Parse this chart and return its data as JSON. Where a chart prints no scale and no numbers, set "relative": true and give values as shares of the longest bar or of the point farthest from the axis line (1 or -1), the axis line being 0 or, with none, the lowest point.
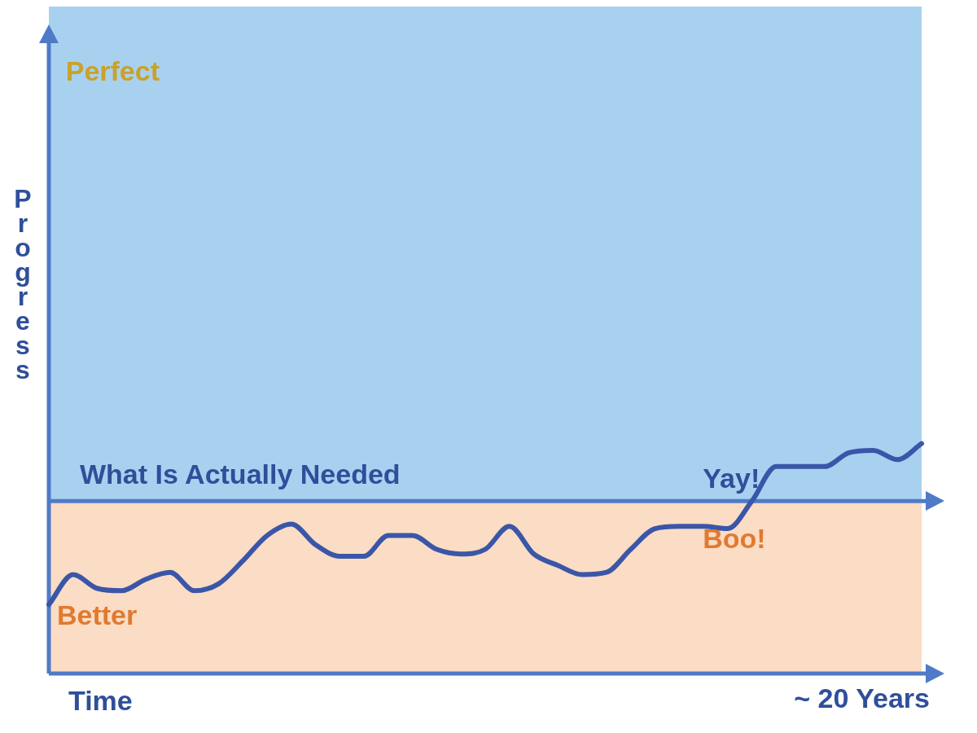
{
  "chart_data": {
    "type": "line",
    "relative": true,
    "xlabel": "Time",
    "ylabel": "Progress",
    "categories": [
      null,
      null,
      null,
      null,
      null,
      null,
      null,
      null,
      null,
      null,
      null,
      null,
      null,
      null,
      null,
      null,
      null,
      null,
      null,
      null,
      null,
      null,
      null,
      null,
      null,
      null,
      null,
      null,
      null,
      null,
      null,
      null,
      null,
      null,
      null,
      null,
      null
    ],
    "series": [
      {
        "color": "#3a56a8",
        "values": [
          0.3,
          0.43,
          0.37,
          0.36,
          0.41,
          0.44,
          0.36,
          0.39,
          0.49,
          0.6,
          0.65,
          0.56,
          0.51,
          0.51,
          0.6,
          0.6,
          0.54,
          0.52,
          0.54,
          0.64,
          0.52,
          0.47,
          0.43,
          0.44,
          0.54,
          0.63,
          0.64,
          0.64,
          0.63,
          0.75,
          0.9,
          0.9,
          0.9,
          0.96,
          0.97,
          0.93,
          1
        ]
      }
    ],
    "ref_lines": [
      {
        "axis": "y",
        "value": 0.75,
        "label": "What Is Actually Needed",
        "color": "#4f7ac7"
      }
    ],
    "bands": [
      {
        "axis": "y",
        "from": 0,
        "to": 0.75,
        "color": "#fbdcc4"
      },
      {
        "axis": "y",
        "from": 0.75,
        "to": 2.9,
        "color": "#a8d1f0"
      }
    ],
    "annotations": [
      "Perfect",
      "Better",
      "Boo!",
      "Yay!",
      "~ 20 Years"
    ]
  }
}
